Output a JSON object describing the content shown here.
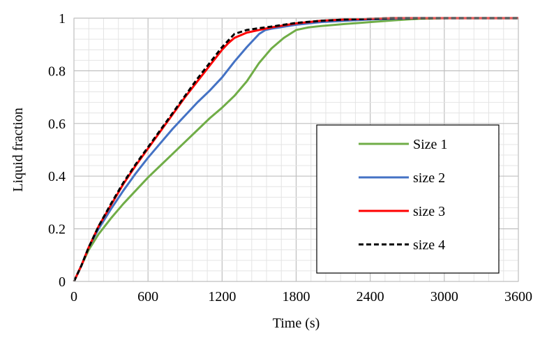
{
  "chart_data": {
    "type": "line",
    "title": "",
    "xlabel": "Time (s)",
    "ylabel": "Liquid fraction",
    "xlim": [
      0,
      3600
    ],
    "ylim": [
      0,
      1
    ],
    "xticks": [
      0,
      600,
      1200,
      1800,
      2400,
      3000,
      3600
    ],
    "yticks": [
      0,
      0.2,
      0.4,
      0.6,
      0.8,
      1
    ],
    "xtick_labels": [
      "0",
      "600",
      "1200",
      "1800",
      "2400",
      "3000",
      "3600"
    ],
    "ytick_labels": [
      "0",
      "0.2",
      "0.4",
      "0.6",
      "0.8",
      "1"
    ],
    "grid": "major and minor",
    "legend_position": "right",
    "series": [
      {
        "name": "Size 1",
        "color": "#70ad47",
        "dash": "solid",
        "x": [
          0,
          60,
          120,
          200,
          300,
          400,
          500,
          600,
          700,
          800,
          900,
          1000,
          1100,
          1200,
          1300,
          1400,
          1500,
          1600,
          1700,
          1800,
          1900,
          2000,
          2200,
          2400,
          2600,
          2800,
          3000,
          3200,
          3400,
          3600
        ],
        "y": [
          0,
          0.06,
          0.12,
          0.18,
          0.24,
          0.295,
          0.345,
          0.395,
          0.44,
          0.485,
          0.53,
          0.575,
          0.62,
          0.66,
          0.705,
          0.76,
          0.83,
          0.885,
          0.925,
          0.955,
          0.965,
          0.97,
          0.978,
          0.985,
          0.992,
          0.998,
          1,
          1,
          1,
          1
        ]
      },
      {
        "name": "size 2",
        "color": "#4472c4",
        "dash": "solid",
        "x": [
          0,
          60,
          120,
          200,
          300,
          400,
          500,
          600,
          700,
          800,
          900,
          1000,
          1100,
          1200,
          1300,
          1400,
          1500,
          1550,
          1600,
          1800,
          2000,
          2200,
          2400,
          2600,
          2800,
          3000,
          3200,
          3400,
          3600
        ],
        "y": [
          0,
          0.06,
          0.13,
          0.2,
          0.275,
          0.345,
          0.41,
          0.47,
          0.525,
          0.58,
          0.63,
          0.68,
          0.725,
          0.775,
          0.835,
          0.89,
          0.94,
          0.955,
          0.96,
          0.975,
          0.985,
          0.99,
          0.995,
          0.998,
          1,
          1,
          1,
          1,
          1
        ]
      },
      {
        "name": "size 3",
        "color": "#ff0000",
        "dash": "solid",
        "x": [
          0,
          60,
          120,
          200,
          300,
          400,
          500,
          600,
          700,
          800,
          900,
          1000,
          1100,
          1200,
          1250,
          1300,
          1400,
          1500,
          1600,
          1800,
          2000,
          2200,
          2400,
          2600,
          2800,
          3000,
          3200,
          3400,
          3600
        ],
        "y": [
          0,
          0.06,
          0.13,
          0.21,
          0.29,
          0.37,
          0.44,
          0.505,
          0.57,
          0.635,
          0.7,
          0.76,
          0.82,
          0.88,
          0.905,
          0.925,
          0.945,
          0.955,
          0.965,
          0.98,
          0.99,
          0.995,
          0.998,
          1,
          1,
          1,
          1,
          1,
          1
        ]
      },
      {
        "name": "size 4",
        "color": "#000000",
        "dash": "dashed",
        "x": [
          0,
          60,
          120,
          200,
          300,
          400,
          500,
          600,
          700,
          800,
          900,
          1000,
          1100,
          1200,
          1250,
          1300,
          1400,
          1500,
          1600,
          1800,
          2000,
          2200,
          2400,
          2600,
          2800,
          3000,
          3200,
          3400,
          3600
        ],
        "y": [
          0,
          0.06,
          0.13,
          0.21,
          0.295,
          0.375,
          0.445,
          0.51,
          0.575,
          0.64,
          0.705,
          0.77,
          0.83,
          0.89,
          0.915,
          0.94,
          0.955,
          0.962,
          0.968,
          0.982,
          0.99,
          0.995,
          0.998,
          1,
          1,
          1,
          1,
          1,
          1
        ]
      }
    ]
  }
}
